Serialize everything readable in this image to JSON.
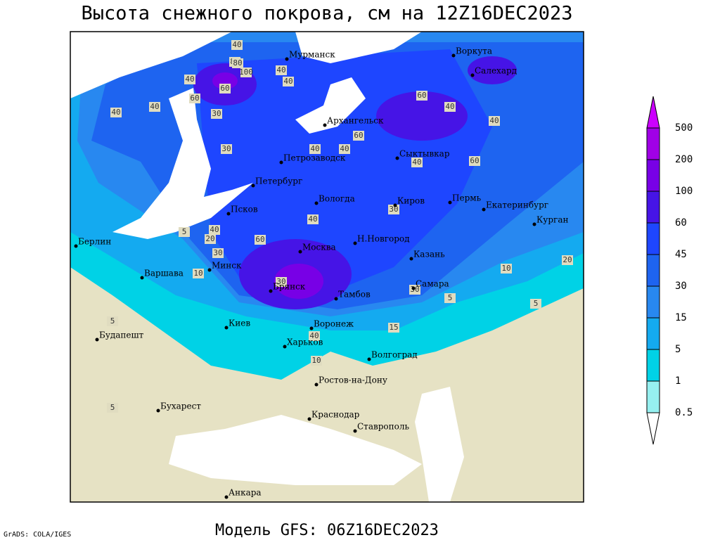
{
  "title": "Высота снежного покрова, см на 12Z16DEC2023",
  "footer": "Модель GFS: 06Z16DEC2023",
  "credit": "GrADS: COLA/IGES",
  "cities": [
    "Мурманск",
    "Воркута",
    "Салехард",
    "Архангельск",
    "Сыктывкар",
    "Петрозаводск",
    "Петербург",
    "Вологда",
    "Псков",
    "Киров",
    "Пермь",
    "Екатеринбург",
    "Курган",
    "Н.Новгород",
    "Казань",
    "Москва",
    "Берлин",
    "Минск",
    "Варшава",
    "Самара",
    "Брянск",
    "Тамбов",
    "Киев",
    "Воронеж",
    "Будапешт",
    "Харьков",
    "Волгоград",
    "Ростов-на-Дону",
    "Бухарест",
    "Краснодар",
    "Ставрополь",
    "Анкара"
  ],
  "contour_labels": [
    40,
    80,
    100,
    60,
    40,
    40,
    40,
    60,
    80,
    60,
    40,
    40,
    30,
    30,
    40,
    40,
    60,
    40,
    40,
    60,
    40,
    30,
    40,
    20,
    30,
    10,
    40,
    60,
    30,
    5,
    30,
    10,
    5,
    15,
    10,
    5,
    5,
    5,
    20,
    40
  ],
  "colorbar": {
    "levels": [
      500,
      200,
      100,
      60,
      45,
      30,
      15,
      5,
      1,
      0.5
    ],
    "colors": [
      "#cc00ff",
      "#a000e6",
      "#7800e6",
      "#4614e6",
      "#1e46ff",
      "#1e64f0",
      "#2888f0",
      "#14aaf0",
      "#00d2e6",
      "#96f0f0",
      "#ffffff"
    ]
  }
}
